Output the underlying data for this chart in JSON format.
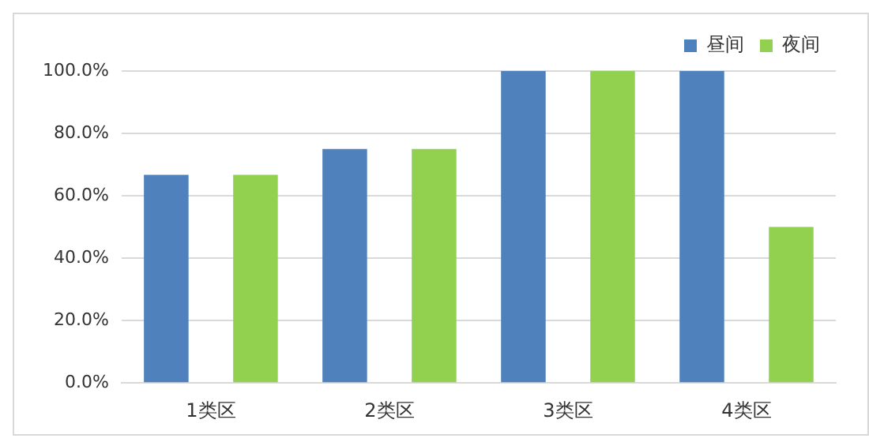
{
  "chart_data": {
    "type": "bar",
    "categories": [
      "1类区",
      "2类区",
      "3类区",
      "4类区"
    ],
    "series": [
      {
        "name": "昼间",
        "color": "#4f81bd",
        "values": [
          66.7,
          75,
          100,
          100
        ]
      },
      {
        "name": "夜间",
        "color": "#92d050",
        "values": [
          66.7,
          75,
          100,
          50
        ]
      }
    ],
    "ylim": [
      0,
      100
    ],
    "yticks": [
      {
        "value": 0,
        "label": "0.0%"
      },
      {
        "value": 20,
        "label": "20.0%"
      },
      {
        "value": 40,
        "label": "40.0%"
      },
      {
        "value": 60,
        "label": "60.0%"
      },
      {
        "value": 80,
        "label": "80.0%"
      },
      {
        "value": 100,
        "label": "100.0%"
      }
    ],
    "grid": "y",
    "legend": "top right"
  }
}
